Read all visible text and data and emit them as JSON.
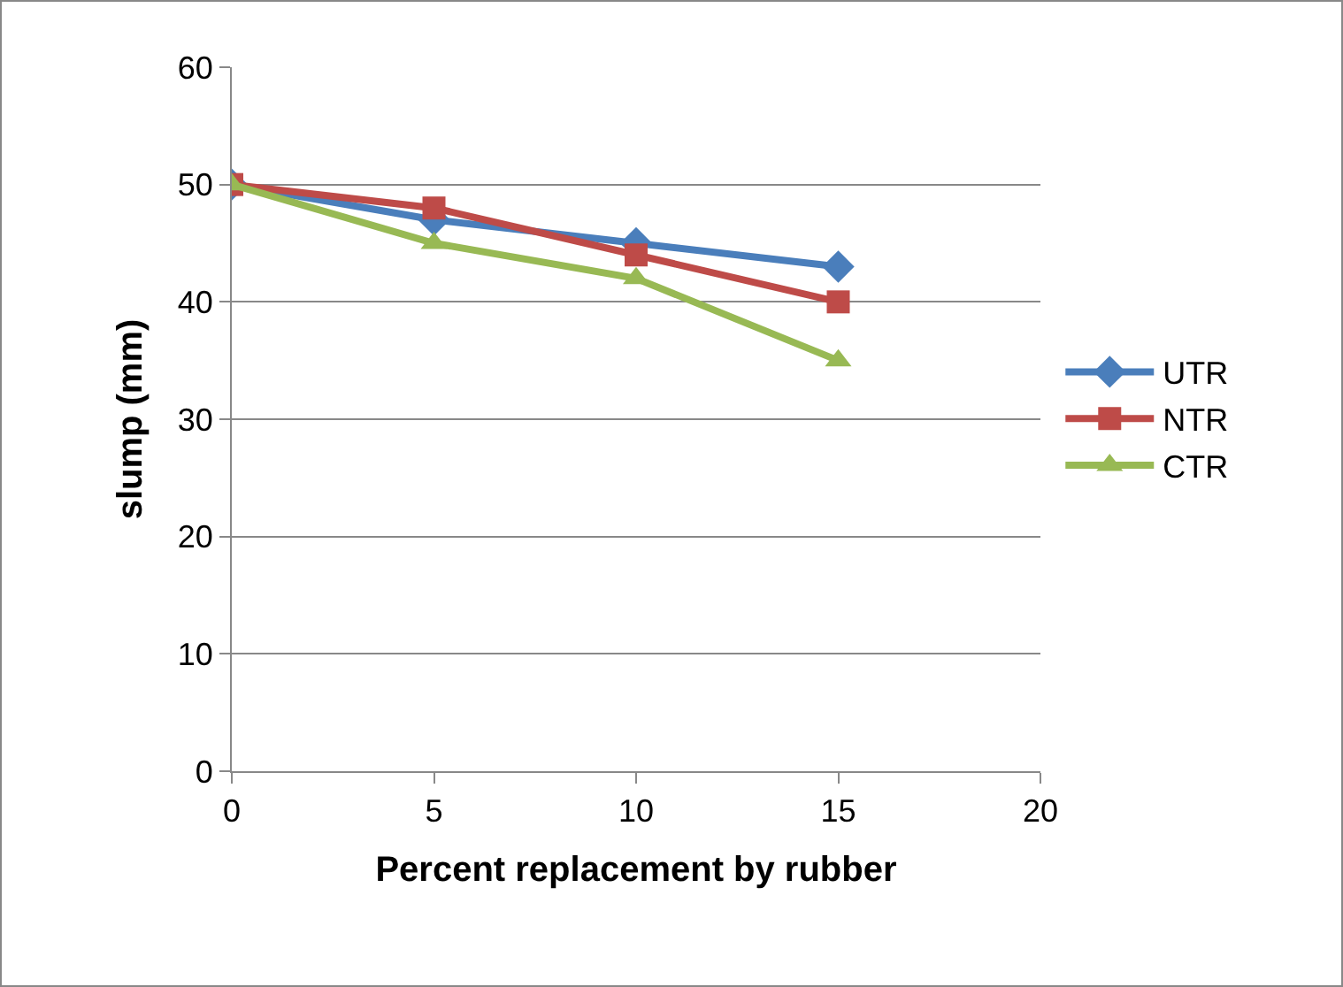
{
  "chart_data": {
    "type": "line",
    "xlabel": "Percent replacement by rubber",
    "ylabel": "slump (mm)",
    "x": [
      0,
      5,
      10,
      15
    ],
    "series": [
      {
        "name": "UTR",
        "color": "#4a7ebb",
        "values": [
          50,
          47,
          45,
          43
        ],
        "marker": "diamond"
      },
      {
        "name": "NTR",
        "color": "#be4b48",
        "values": [
          50,
          48,
          44,
          40
        ],
        "marker": "square"
      },
      {
        "name": "CTR",
        "color": "#98b954",
        "values": [
          50,
          45,
          42,
          35
        ],
        "marker": "triangle"
      }
    ],
    "xlim": [
      0,
      20
    ],
    "xticks": [
      0,
      5,
      10,
      15,
      20
    ],
    "ylim": [
      0,
      60
    ],
    "yticks": [
      0,
      10,
      20,
      30,
      40,
      50,
      60
    ],
    "grid": "y",
    "legend": "right",
    "line_style": "solid"
  }
}
